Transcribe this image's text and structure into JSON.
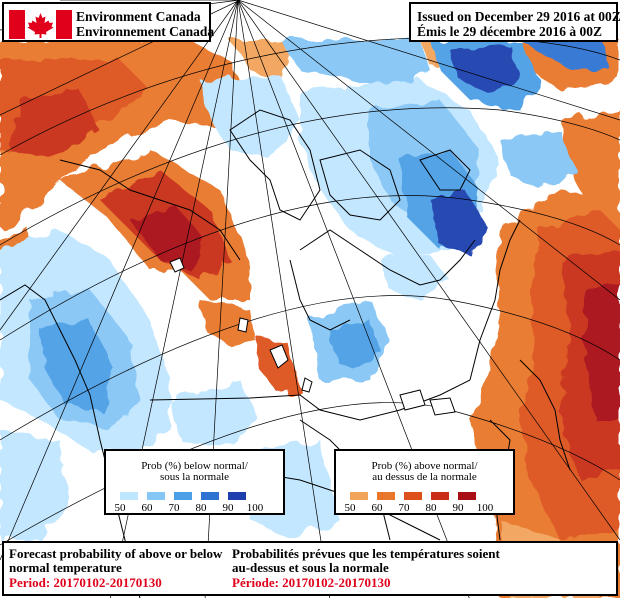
{
  "header": {
    "agency_en": "Environment Canada",
    "agency_fr": "Environnement Canada",
    "issued_en": "Issued on December 29 2016 at 00Z",
    "issued_fr": "Émis le 29 décembre 2016 à 00Z"
  },
  "legend_below": {
    "title_en": "Prob (%) below normal/",
    "title_fr": "sous la normale",
    "ticks": [
      "50",
      "60",
      "70",
      "80",
      "90",
      "100"
    ],
    "colors": [
      "#bfe6ff",
      "#86c6f5",
      "#4b9fe6",
      "#2f73d2",
      "#1f3fae"
    ]
  },
  "legend_above": {
    "title_en": "Prob (%) above normal/",
    "title_fr": "au dessus de la normale",
    "ticks": [
      "50",
      "60",
      "70",
      "80",
      "90",
      "100"
    ],
    "colors": [
      "#f2a35a",
      "#e9772b",
      "#dd521c",
      "#c92d16",
      "#a80e14"
    ]
  },
  "footer": {
    "en_line1": "Forecast probability of above or below",
    "en_line2": "normal temperature",
    "en_period": "Period: 20170102-20170130",
    "fr_line1": "Probabilités prévues que les températures soient",
    "fr_line2": "au-dessus et sous la normale",
    "fr_period": "Période: 20170102-20170130"
  },
  "colors": {
    "flag_red": "#e0001b",
    "period_red": "#e0001b"
  }
}
